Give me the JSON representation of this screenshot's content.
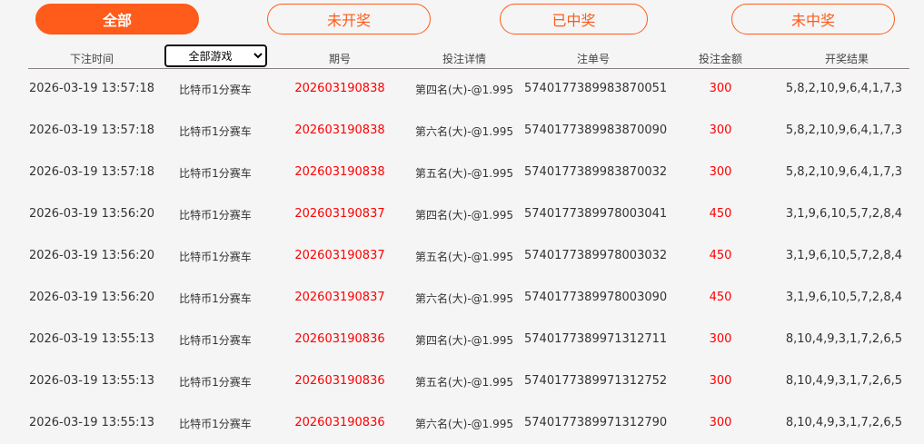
{
  "tabs": [
    {
      "label": "全部",
      "active": true
    },
    {
      "label": "未开奖",
      "active": false
    },
    {
      "label": "已中奖",
      "active": false
    },
    {
      "label": "未中奖",
      "active": false
    }
  ],
  "colors": {
    "accent": "#ff5b1a",
    "highlight": "#ff0000"
  },
  "table": {
    "headers": [
      "下注时间",
      "期号",
      "投注详情",
      "注单号",
      "投注金额",
      "开奖结果"
    ],
    "game_filter": {
      "selected": "全部游戏"
    },
    "rows": [
      [
        "2026-03-19 13:57:18",
        "比特币1分赛车",
        "202603190838",
        "第四名(大)-@1.995",
        "5740177389983870051",
        "300",
        "5,8,2,10,9,6,4,1,7,3"
      ],
      [
        "2026-03-19 13:57:18",
        "比特币1分赛车",
        "202603190838",
        "第六名(大)-@1.995",
        "5740177389983870090",
        "300",
        "5,8,2,10,9,6,4,1,7,3"
      ],
      [
        "2026-03-19 13:57:18",
        "比特币1分赛车",
        "202603190838",
        "第五名(大)-@1.995",
        "5740177389983870032",
        "300",
        "5,8,2,10,9,6,4,1,7,3"
      ],
      [
        "2026-03-19 13:56:20",
        "比特币1分赛车",
        "202603190837",
        "第四名(大)-@1.995",
        "5740177389978003041",
        "450",
        "3,1,9,6,10,5,7,2,8,4"
      ],
      [
        "2026-03-19 13:56:20",
        "比特币1分赛车",
        "202603190837",
        "第五名(大)-@1.995",
        "5740177389978003032",
        "450",
        "3,1,9,6,10,5,7,2,8,4"
      ],
      [
        "2026-03-19 13:56:20",
        "比特币1分赛车",
        "202603190837",
        "第六名(大)-@1.995",
        "5740177389978003090",
        "450",
        "3,1,9,6,10,5,7,2,8,4"
      ],
      [
        "2026-03-19 13:55:13",
        "比特币1分赛车",
        "202603190836",
        "第四名(大)-@1.995",
        "5740177389971312711",
        "300",
        "8,10,4,9,3,1,7,2,6,5"
      ],
      [
        "2026-03-19 13:55:13",
        "比特币1分赛车",
        "202603190836",
        "第五名(大)-@1.995",
        "5740177389971312752",
        "300",
        "8,10,4,9,3,1,7,2,6,5"
      ],
      [
        "2026-03-19 13:55:13",
        "比特币1分赛车",
        "202603190836",
        "第六名(大)-@1.995",
        "5740177389971312790",
        "300",
        "8,10,4,9,3,1,7,2,6,5"
      ]
    ]
  }
}
